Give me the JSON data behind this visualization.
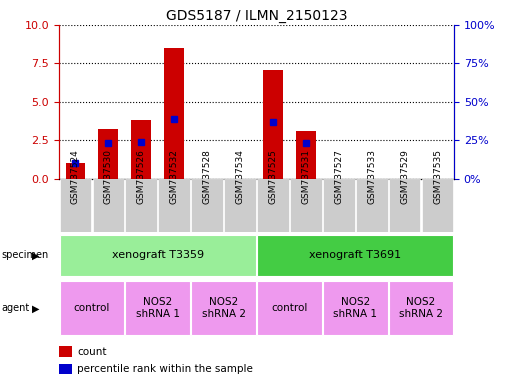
{
  "title": "GDS5187 / ILMN_2150123",
  "samples": [
    "GSM737524",
    "GSM737530",
    "GSM737526",
    "GSM737532",
    "GSM737528",
    "GSM737534",
    "GSM737525",
    "GSM737531",
    "GSM737527",
    "GSM737533",
    "GSM737529",
    "GSM737535"
  ],
  "counts": [
    1.0,
    3.2,
    3.8,
    8.5,
    0,
    0,
    7.1,
    3.1,
    0,
    0,
    0,
    0
  ],
  "percentile": [
    10.0,
    23.0,
    24.0,
    39.0,
    0,
    0,
    37.0,
    23.0,
    0,
    0,
    0,
    0
  ],
  "ylim_left": [
    0,
    10
  ],
  "ylim_right": [
    0,
    100
  ],
  "yticks_left": [
    0,
    2.5,
    5,
    7.5,
    10
  ],
  "yticks_right": [
    0,
    25,
    50,
    75,
    100
  ],
  "bar_color": "#cc0000",
  "dot_color": "#0000cc",
  "bar_width": 0.6,
  "specimen_labels": [
    "xenograft T3359",
    "xenograft T3691"
  ],
  "specimen_color": "#99ee99",
  "specimen_color2": "#44cc44",
  "agent_color": "#ee99ee",
  "tick_color_left": "#cc0000",
  "tick_color_right": "#0000cc",
  "background_color": "#ffffff",
  "xtick_bg": "#cccccc",
  "grid_color": "#000000",
  "legend_count_color": "#cc0000",
  "legend_dot_color": "#0000cc"
}
